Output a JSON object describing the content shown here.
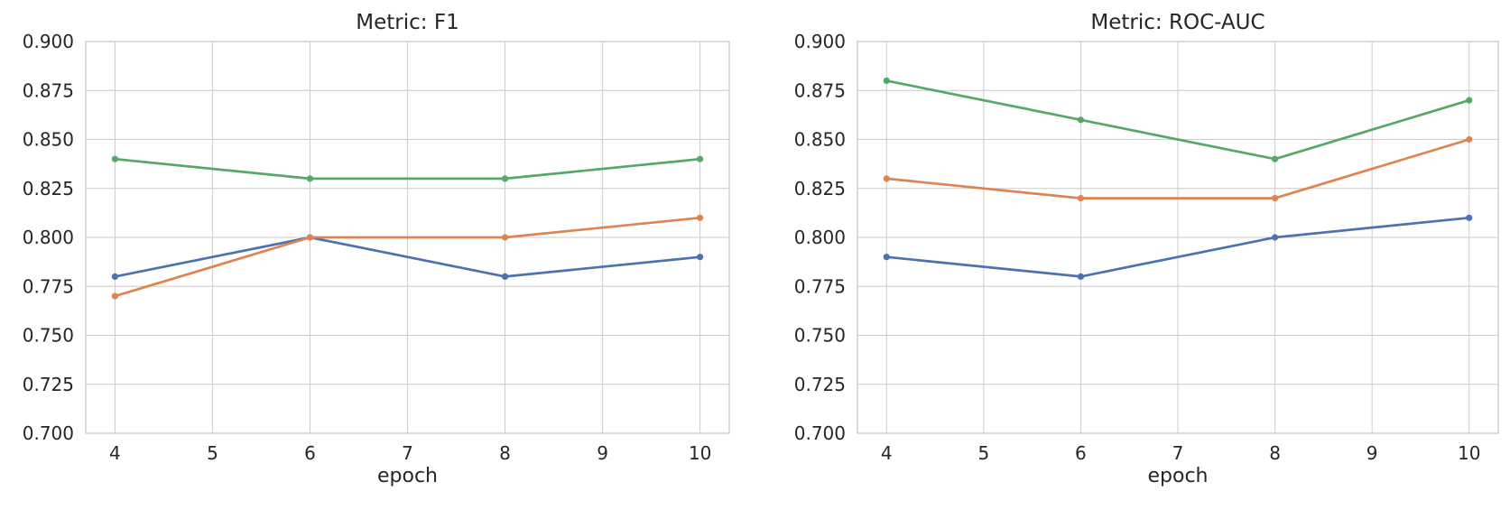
{
  "figure": {
    "background_color": "#ffffff",
    "text_color": "#262626",
    "grid_color": "#cccccc"
  },
  "chart_data": [
    {
      "type": "line",
      "title": "Metric: F1",
      "xlabel": "epoch",
      "ylabel": "",
      "x": [
        4,
        6,
        8,
        10
      ],
      "series": [
        {
          "name": "blue",
          "color": "#4C72B0",
          "values": [
            0.78,
            0.8,
            0.78,
            0.79
          ]
        },
        {
          "name": "orange",
          "color": "#DD8452",
          "values": [
            0.77,
            0.8,
            0.8,
            0.81
          ]
        },
        {
          "name": "green",
          "color": "#55A868",
          "values": [
            0.84,
            0.83,
            0.83,
            0.84
          ]
        }
      ],
      "xlim": [
        3.7,
        10.3
      ],
      "ylim": [
        0.7,
        0.9
      ],
      "xtick_values": [
        4,
        5,
        6,
        7,
        8,
        9,
        10
      ],
      "xtick_labels": [
        "4",
        "5",
        "6",
        "7",
        "8",
        "9",
        "10"
      ],
      "ytick_values": [
        0.7,
        0.725,
        0.75,
        0.775,
        0.8,
        0.825,
        0.85,
        0.875,
        0.9
      ],
      "ytick_labels": [
        "0.700",
        "0.725",
        "0.750",
        "0.775",
        "0.800",
        "0.825",
        "0.850",
        "0.875",
        "0.900"
      ],
      "grid": true,
      "legend": false
    },
    {
      "type": "line",
      "title": "Metric: ROC-AUC",
      "xlabel": "epoch",
      "ylabel": "",
      "x": [
        4,
        6,
        8,
        10
      ],
      "series": [
        {
          "name": "blue",
          "color": "#4C72B0",
          "values": [
            0.79,
            0.78,
            0.8,
            0.81
          ]
        },
        {
          "name": "orange",
          "color": "#DD8452",
          "values": [
            0.83,
            0.82,
            0.82,
            0.85
          ]
        },
        {
          "name": "green",
          "color": "#55A868",
          "values": [
            0.88,
            0.86,
            0.84,
            0.87
          ]
        }
      ],
      "xlim": [
        3.7,
        10.3
      ],
      "ylim": [
        0.7,
        0.9
      ],
      "xtick_values": [
        4,
        5,
        6,
        7,
        8,
        9,
        10
      ],
      "xtick_labels": [
        "4",
        "5",
        "6",
        "7",
        "8",
        "9",
        "10"
      ],
      "ytick_values": [
        0.7,
        0.725,
        0.75,
        0.775,
        0.8,
        0.825,
        0.85,
        0.875,
        0.9
      ],
      "ytick_labels": [
        "0.700",
        "0.725",
        "0.750",
        "0.775",
        "0.800",
        "0.825",
        "0.850",
        "0.875",
        "0.900"
      ],
      "grid": true,
      "legend": false
    }
  ]
}
